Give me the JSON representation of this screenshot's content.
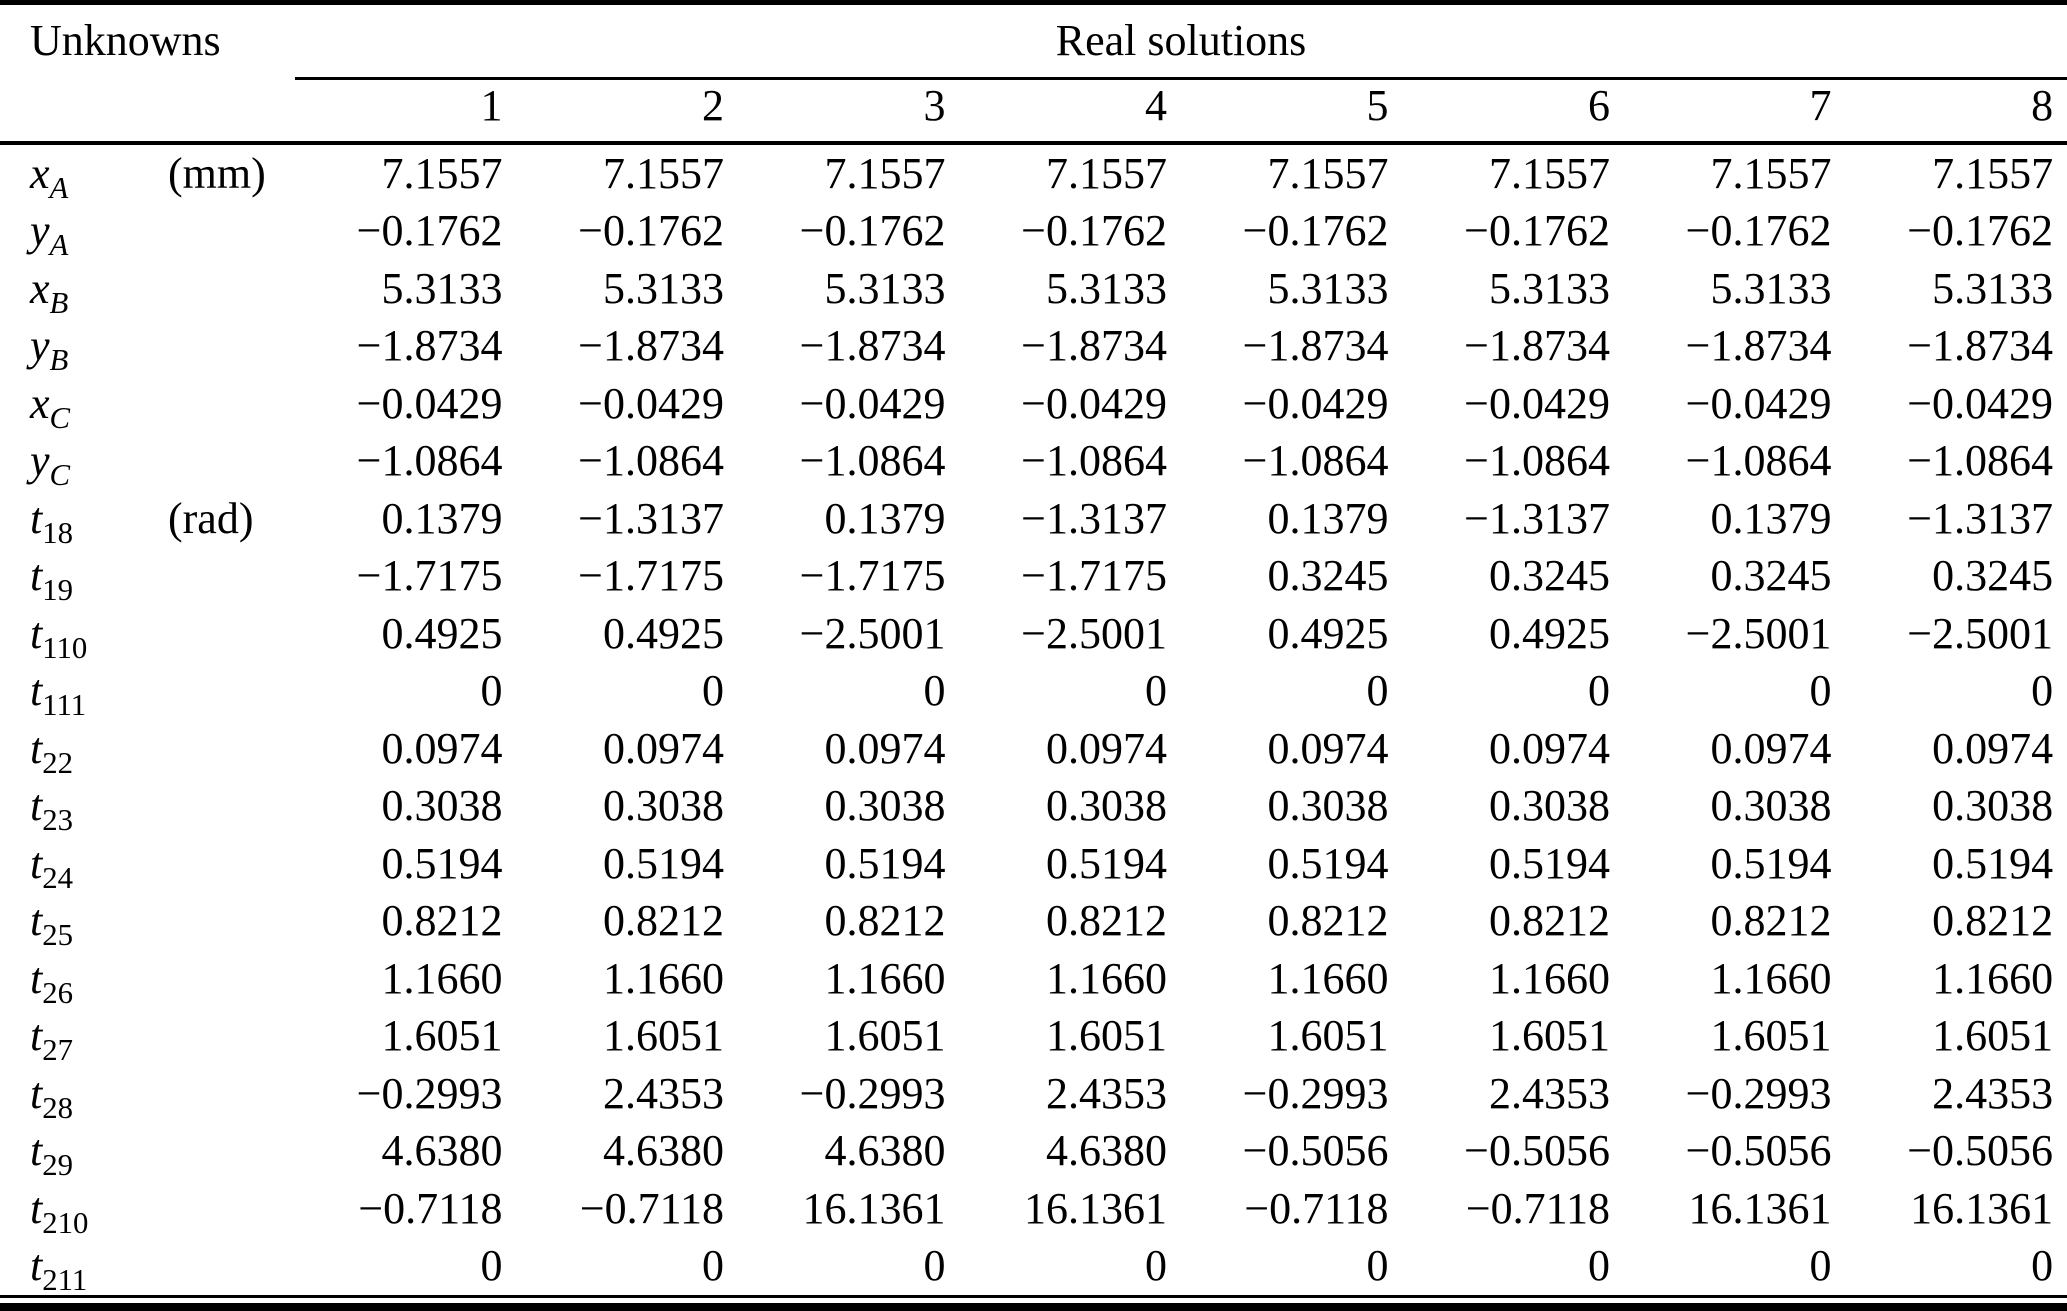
{
  "page": {
    "background": "#ffffff",
    "text_color": "#000000"
  },
  "table": {
    "header": {
      "unknowns_label": "Unknowns",
      "real_solutions_label": "Real solutions",
      "solution_numbers": [
        "1",
        "2",
        "3",
        "4",
        "5",
        "6",
        "7",
        "8"
      ]
    },
    "rows": [
      {
        "base": "x",
        "sub": "A",
        "unit": "(mm)",
        "values": [
          "7.1557",
          "7.1557",
          "7.1557",
          "7.1557",
          "7.1557",
          "7.1557",
          "7.1557",
          "7.1557"
        ]
      },
      {
        "base": "y",
        "sub": "A",
        "unit": "",
        "values": [
          "−0.1762",
          "−0.1762",
          "−0.1762",
          "−0.1762",
          "−0.1762",
          "−0.1762",
          "−0.1762",
          "−0.1762"
        ]
      },
      {
        "base": "x",
        "sub": "B",
        "unit": "",
        "values": [
          "5.3133",
          "5.3133",
          "5.3133",
          "5.3133",
          "5.3133",
          "5.3133",
          "5.3133",
          "5.3133"
        ]
      },
      {
        "base": "y",
        "sub": "B",
        "unit": "",
        "values": [
          "−1.8734",
          "−1.8734",
          "−1.8734",
          "−1.8734",
          "−1.8734",
          "−1.8734",
          "−1.8734",
          "−1.8734"
        ]
      },
      {
        "base": "x",
        "sub": "C",
        "unit": "",
        "values": [
          "−0.0429",
          "−0.0429",
          "−0.0429",
          "−0.0429",
          "−0.0429",
          "−0.0429",
          "−0.0429",
          "−0.0429"
        ]
      },
      {
        "base": "y",
        "sub": "C",
        "unit": "",
        "values": [
          "−1.0864",
          "−1.0864",
          "−1.0864",
          "−1.0864",
          "−1.0864",
          "−1.0864",
          "−1.0864",
          "−1.0864"
        ]
      },
      {
        "base": "t",
        "sub": "18",
        "unit": "(rad)",
        "values": [
          "0.1379",
          "−1.3137",
          "0.1379",
          "−1.3137",
          "0.1379",
          "−1.3137",
          "0.1379",
          "−1.3137"
        ]
      },
      {
        "base": "t",
        "sub": "19",
        "unit": "",
        "values": [
          "−1.7175",
          "−1.7175",
          "−1.7175",
          "−1.7175",
          "0.3245",
          "0.3245",
          "0.3245",
          "0.3245"
        ]
      },
      {
        "base": "t",
        "sub": "110",
        "unit": "",
        "values": [
          "0.4925",
          "0.4925",
          "−2.5001",
          "−2.5001",
          "0.4925",
          "0.4925",
          "−2.5001",
          "−2.5001"
        ]
      },
      {
        "base": "t",
        "sub": "111",
        "unit": "",
        "values": [
          "0",
          "0",
          "0",
          "0",
          "0",
          "0",
          "0",
          "0"
        ]
      },
      {
        "base": "t",
        "sub": "22",
        "unit": "",
        "values": [
          "0.0974",
          "0.0974",
          "0.0974",
          "0.0974",
          "0.0974",
          "0.0974",
          "0.0974",
          "0.0974"
        ]
      },
      {
        "base": "t",
        "sub": "23",
        "unit": "",
        "values": [
          "0.3038",
          "0.3038",
          "0.3038",
          "0.3038",
          "0.3038",
          "0.3038",
          "0.3038",
          "0.3038"
        ]
      },
      {
        "base": "t",
        "sub": "24",
        "unit": "",
        "values": [
          "0.5194",
          "0.5194",
          "0.5194",
          "0.5194",
          "0.5194",
          "0.5194",
          "0.5194",
          "0.5194"
        ]
      },
      {
        "base": "t",
        "sub": "25",
        "unit": "",
        "values": [
          "0.8212",
          "0.8212",
          "0.8212",
          "0.8212",
          "0.8212",
          "0.8212",
          "0.8212",
          "0.8212"
        ]
      },
      {
        "base": "t",
        "sub": "26",
        "unit": "",
        "values": [
          "1.1660",
          "1.1660",
          "1.1660",
          "1.1660",
          "1.1660",
          "1.1660",
          "1.1660",
          "1.1660"
        ]
      },
      {
        "base": "t",
        "sub": "27",
        "unit": "",
        "values": [
          "1.6051",
          "1.6051",
          "1.6051",
          "1.6051",
          "1.6051",
          "1.6051",
          "1.6051",
          "1.6051"
        ]
      },
      {
        "base": "t",
        "sub": "28",
        "unit": "",
        "values": [
          "−0.2993",
          "2.4353",
          "−0.2993",
          "2.4353",
          "−0.2993",
          "2.4353",
          "−0.2993",
          "2.4353"
        ]
      },
      {
        "base": "t",
        "sub": "29",
        "unit": "",
        "values": [
          "4.6380",
          "4.6380",
          "4.6380",
          "4.6380",
          "−0.5056",
          "−0.5056",
          "−0.5056",
          "−0.5056"
        ]
      },
      {
        "base": "t",
        "sub": "210",
        "unit": "",
        "values": [
          "−0.7118",
          "−0.7118",
          "16.1361",
          "16.1361",
          "−0.7118",
          "−0.7118",
          "16.1361",
          "16.1361"
        ]
      },
      {
        "base": "t",
        "sub": "211",
        "unit": "",
        "values": [
          "0",
          "0",
          "0",
          "0",
          "0",
          "0",
          "0",
          "0"
        ]
      }
    ]
  }
}
